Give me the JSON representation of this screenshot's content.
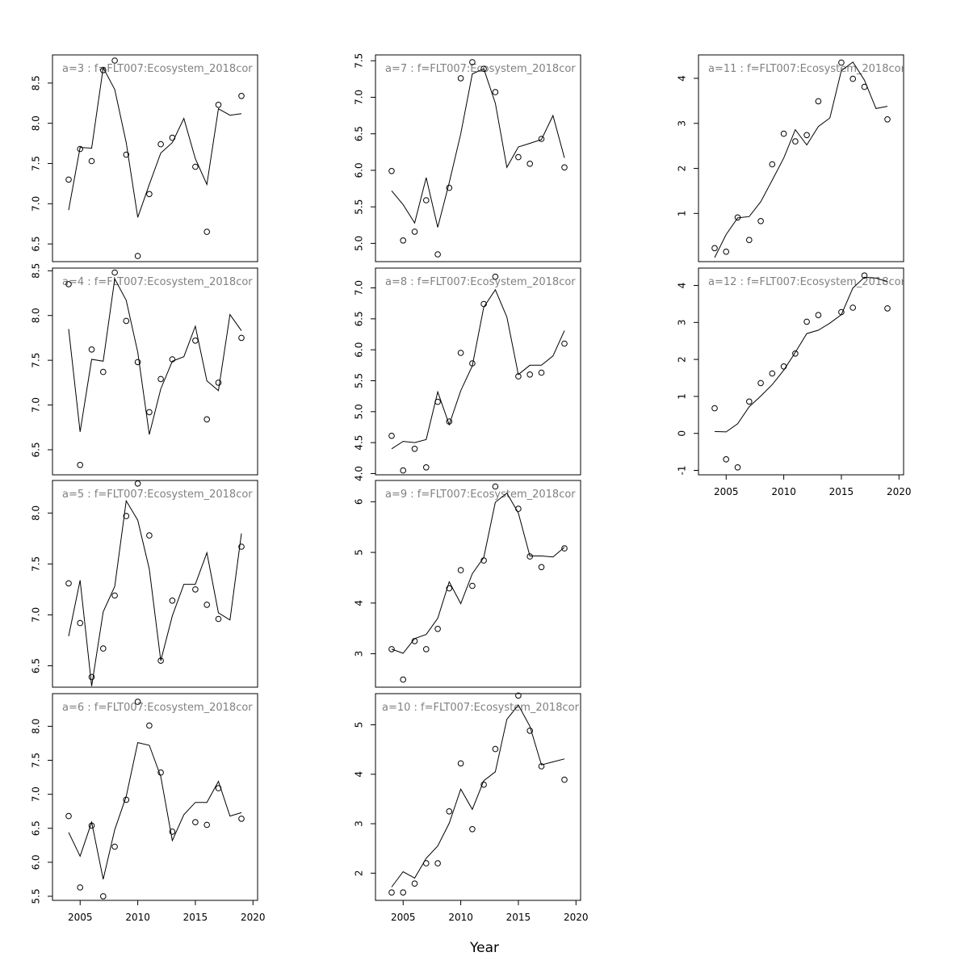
{
  "figure": {
    "xlabel": "Year"
  },
  "chart_data": [
    {
      "type": "scatter",
      "title": "a=3  :  f=FLT007:Ecosystem_2018cor",
      "xlim": [
        2002.6,
        2020.4
      ],
      "ylim": [
        6.28,
        8.85
      ],
      "y_ticks": [
        6.5,
        7.0,
        7.5,
        8.0,
        8.5
      ],
      "show_x_axis": false,
      "points": {
        "x": [
          2004,
          2005,
          2006,
          2007,
          2008,
          2009,
          2010,
          2011,
          2012,
          2013,
          2015,
          2016,
          2017,
          2019
        ],
        "y": [
          7.3,
          7.68,
          7.53,
          8.66,
          8.78,
          7.61,
          6.35,
          7.12,
          7.74,
          7.82,
          7.46,
          6.65,
          8.23,
          8.34
        ]
      },
      "line": {
        "x": [
          2004,
          2005,
          2006,
          2007,
          2008,
          2009,
          2010,
          2011,
          2012,
          2013,
          2014,
          2015,
          2016,
          2017,
          2018,
          2019
        ],
        "y": [
          6.92,
          7.7,
          7.69,
          8.69,
          8.42,
          7.76,
          6.83,
          7.24,
          7.63,
          7.76,
          8.06,
          7.56,
          7.24,
          8.18,
          8.1,
          8.12
        ]
      }
    },
    {
      "type": "scatter",
      "title": "a=4  :  f=FLT007:Ecosystem_2018cor",
      "xlim": [
        2002.6,
        2020.4
      ],
      "ylim": [
        6.22,
        8.53
      ],
      "y_ticks": [
        6.5,
        7.0,
        7.5,
        8.0,
        8.5
      ],
      "show_x_axis": false,
      "points": {
        "x": [
          2004,
          2005,
          2006,
          2007,
          2008,
          2009,
          2010,
          2011,
          2012,
          2013,
          2015,
          2016,
          2017,
          2019
        ],
        "y": [
          8.35,
          6.33,
          7.62,
          7.37,
          8.48,
          7.94,
          7.48,
          6.92,
          7.29,
          7.51,
          7.72,
          6.84,
          7.25,
          7.75
        ]
      },
      "line": {
        "x": [
          2004,
          2005,
          2006,
          2007,
          2008,
          2009,
          2010,
          2011,
          2012,
          2013,
          2014,
          2015,
          2016,
          2017,
          2018,
          2019
        ],
        "y": [
          7.85,
          6.7,
          7.51,
          7.49,
          8.41,
          8.17,
          7.59,
          6.67,
          7.18,
          7.49,
          7.54,
          7.88,
          7.27,
          7.16,
          8.01,
          7.83
        ]
      }
    },
    {
      "type": "scatter",
      "title": "a=5  :  f=FLT007:Ecosystem_2018cor",
      "xlim": [
        2002.6,
        2020.4
      ],
      "ylim": [
        6.29,
        8.32
      ],
      "y_ticks": [
        6.5,
        7.0,
        7.5,
        8.0
      ],
      "show_x_axis": false,
      "points": {
        "x": [
          2004,
          2005,
          2006,
          2007,
          2008,
          2009,
          2010,
          2011,
          2012,
          2013,
          2015,
          2016,
          2017,
          2019
        ],
        "y": [
          7.31,
          6.92,
          6.39,
          6.67,
          7.19,
          7.97,
          8.29,
          7.78,
          6.55,
          7.14,
          7.25,
          7.1,
          6.96,
          7.67
        ]
      },
      "line": {
        "x": [
          2004,
          2005,
          2006,
          2007,
          2008,
          2009,
          2010,
          2011,
          2012,
          2013,
          2014,
          2015,
          2016,
          2017,
          2018,
          2019
        ],
        "y": [
          6.79,
          7.34,
          6.3,
          7.03,
          7.28,
          8.12,
          7.93,
          7.45,
          6.55,
          6.99,
          7.3,
          7.3,
          7.61,
          7.02,
          6.95,
          7.8
        ]
      }
    },
    {
      "type": "scatter",
      "title": "a=6  :  f=FLT007:Ecosystem_2018cor",
      "xlim": [
        2002.6,
        2020.4
      ],
      "ylim": [
        5.44,
        8.48
      ],
      "y_ticks": [
        5.5,
        6.0,
        6.5,
        7.0,
        7.5,
        8.0
      ],
      "show_x_axis": true,
      "x_ticks": [
        2005,
        2010,
        2015,
        2020
      ],
      "points": {
        "x": [
          2004,
          2005,
          2006,
          2007,
          2008,
          2009,
          2010,
          2011,
          2012,
          2013,
          2015,
          2016,
          2017,
          2019
        ],
        "y": [
          6.68,
          5.63,
          6.54,
          5.5,
          6.23,
          6.92,
          8.36,
          8.01,
          7.32,
          6.45,
          6.59,
          6.55,
          7.09,
          6.64
        ]
      },
      "line": {
        "x": [
          2004,
          2005,
          2006,
          2007,
          2008,
          2009,
          2010,
          2011,
          2012,
          2013,
          2014,
          2015,
          2016,
          2017,
          2018,
          2019
        ],
        "y": [
          6.44,
          6.09,
          6.59,
          5.75,
          6.48,
          6.97,
          7.76,
          7.72,
          7.26,
          6.32,
          6.7,
          6.88,
          6.88,
          7.19,
          6.68,
          6.73
        ]
      }
    },
    {
      "type": "scatter",
      "title": "a=7  :  f=FLT007:Ecosystem_2018cor",
      "xlim": [
        2002.6,
        2020.4
      ],
      "ylim": [
        4.75,
        7.58
      ],
      "y_ticks": [
        5.0,
        5.5,
        6.0,
        6.5,
        7.0,
        7.5
      ],
      "show_x_axis": false,
      "points": {
        "x": [
          2004,
          2005,
          2006,
          2007,
          2008,
          2009,
          2010,
          2011,
          2012,
          2013,
          2015,
          2016,
          2017,
          2019
        ],
        "y": [
          5.99,
          5.04,
          5.16,
          5.59,
          4.85,
          5.76,
          7.26,
          7.48,
          7.39,
          7.07,
          6.18,
          6.09,
          6.43,
          6.04
        ]
      },
      "line": {
        "x": [
          2004,
          2005,
          2006,
          2007,
          2008,
          2009,
          2010,
          2011,
          2012,
          2013,
          2014,
          2015,
          2016,
          2017,
          2018,
          2019
        ],
        "y": [
          5.72,
          5.53,
          5.28,
          5.9,
          5.22,
          5.83,
          6.5,
          7.32,
          7.39,
          6.92,
          6.04,
          6.32,
          6.37,
          6.42,
          6.75,
          6.17
        ]
      }
    },
    {
      "type": "scatter",
      "title": "a=8  :  f=FLT007:Ecosystem_2018cor",
      "xlim": [
        2002.6,
        2020.4
      ],
      "ylim": [
        3.98,
        7.32
      ],
      "y_ticks": [
        4.0,
        4.5,
        5.0,
        5.5,
        6.0,
        6.5,
        7.0
      ],
      "show_x_axis": false,
      "points": {
        "x": [
          2004,
          2005,
          2006,
          2007,
          2008,
          2009,
          2010,
          2011,
          2012,
          2013,
          2015,
          2016,
          2017,
          2019
        ],
        "y": [
          4.61,
          4.05,
          4.4,
          4.1,
          5.16,
          4.84,
          5.95,
          5.78,
          6.74,
          7.18,
          5.57,
          5.6,
          5.63,
          6.1
        ]
      },
      "line": {
        "x": [
          2004,
          2005,
          2006,
          2007,
          2008,
          2009,
          2010,
          2011,
          2012,
          2013,
          2014,
          2015,
          2016,
          2017,
          2018,
          2019
        ],
        "y": [
          4.4,
          4.52,
          4.5,
          4.55,
          5.32,
          4.79,
          5.34,
          5.74,
          6.69,
          6.97,
          6.53,
          5.6,
          5.75,
          5.75,
          5.9,
          6.31
        ]
      }
    },
    {
      "type": "scatter",
      "title": "a=9  :  f=FLT007:Ecosystem_2018cor",
      "xlim": [
        2002.6,
        2020.4
      ],
      "ylim": [
        2.34,
        6.42
      ],
      "y_ticks": [
        3,
        4,
        5,
        6
      ],
      "show_x_axis": false,
      "points": {
        "x": [
          2004,
          2005,
          2006,
          2007,
          2008,
          2009,
          2010,
          2011,
          2012,
          2013,
          2015,
          2016,
          2017,
          2019
        ],
        "y": [
          3.09,
          2.49,
          3.25,
          3.09,
          3.49,
          4.29,
          4.65,
          4.34,
          4.84,
          6.3,
          5.86,
          4.92,
          4.71,
          5.08
        ]
      },
      "line": {
        "x": [
          2004,
          2005,
          2006,
          2007,
          2008,
          2009,
          2010,
          2011,
          2012,
          2013,
          2014,
          2015,
          2016,
          2017,
          2018,
          2019
        ],
        "y": [
          3.09,
          3.01,
          3.3,
          3.38,
          3.7,
          4.42,
          3.99,
          4.58,
          4.9,
          5.99,
          6.17,
          5.78,
          4.93,
          4.93,
          4.91,
          5.1
        ]
      }
    },
    {
      "type": "scatter",
      "title": "a=10  :  f=FLT007:Ecosystem_2018cor",
      "xlim": [
        2002.6,
        2020.4
      ],
      "ylim": [
        1.45,
        5.63
      ],
      "y_ticks": [
        2,
        3,
        4,
        5
      ],
      "show_x_axis": true,
      "x_ticks": [
        2005,
        2010,
        2015,
        2020
      ],
      "points": {
        "x": [
          2004,
          2005,
          2006,
          2007,
          2008,
          2009,
          2010,
          2011,
          2012,
          2013,
          2015,
          2016,
          2017,
          2019
        ],
        "y": [
          1.61,
          1.61,
          1.79,
          2.2,
          2.2,
          3.25,
          4.22,
          2.89,
          3.79,
          4.51,
          5.59,
          4.88,
          4.16,
          3.89
        ]
      },
      "line": {
        "x": [
          2004,
          2005,
          2006,
          2007,
          2008,
          2009,
          2010,
          2011,
          2012,
          2013,
          2014,
          2015,
          2016,
          2017,
          2018,
          2019
        ],
        "y": [
          1.72,
          2.03,
          1.9,
          2.3,
          2.55,
          3.01,
          3.7,
          3.29,
          3.87,
          4.05,
          5.11,
          5.4,
          4.97,
          4.19,
          4.25,
          4.31
        ]
      }
    },
    {
      "type": "scatter",
      "title": "a=11  :  f=FLT007:Ecosystem_2018cor",
      "xlim": [
        2002.6,
        2020.4
      ],
      "ylim": [
        -0.07,
        4.52
      ],
      "y_ticks": [
        1,
        2,
        3,
        4
      ],
      "show_x_axis": false,
      "points": {
        "x": [
          2004,
          2005,
          2006,
          2007,
          2008,
          2009,
          2010,
          2011,
          2012,
          2013,
          2015,
          2016,
          2017,
          2019
        ],
        "y": [
          0.23,
          0.15,
          0.91,
          0.41,
          0.83,
          2.09,
          2.77,
          2.6,
          2.74,
          3.49,
          4.35,
          3.99,
          3.81,
          3.09
        ]
      },
      "line": {
        "x": [
          2004,
          2005,
          2006,
          2007,
          2008,
          2009,
          2010,
          2011,
          2012,
          2013,
          2014,
          2015,
          2016,
          2017,
          2018,
          2019
        ],
        "y": [
          0.02,
          0.53,
          0.9,
          0.93,
          1.26,
          1.74,
          2.23,
          2.86,
          2.52,
          2.93,
          3.12,
          4.17,
          4.36,
          3.96,
          3.33,
          3.38
        ]
      }
    },
    {
      "type": "scatter",
      "title": "a=12  :  f=FLT007:Ecosystem_2018cor",
      "xlim": [
        2002.6,
        2020.4
      ],
      "ylim": [
        -1.12,
        4.47
      ],
      "y_ticks": [
        -1,
        0,
        1,
        2,
        3,
        4
      ],
      "show_x_axis": true,
      "x_ticks": [
        2005,
        2010,
        2015,
        2020
      ],
      "points": {
        "x": [
          2004,
          2005,
          2006,
          2007,
          2008,
          2009,
          2010,
          2011,
          2012,
          2013,
          2015,
          2016,
          2017,
          2019
        ],
        "y": [
          0.68,
          -0.7,
          -0.92,
          0.86,
          1.36,
          1.62,
          1.81,
          2.16,
          3.02,
          3.2,
          3.28,
          3.4,
          4.27,
          3.38
        ]
      },
      "line": {
        "x": [
          2004,
          2005,
          2006,
          2007,
          2008,
          2009,
          2010,
          2011,
          2012,
          2013,
          2014,
          2015,
          2016,
          2017,
          2018,
          2019
        ],
        "y": [
          0.05,
          0.04,
          0.26,
          0.72,
          1.01,
          1.32,
          1.71,
          2.19,
          2.7,
          2.79,
          2.98,
          3.21,
          3.93,
          4.22,
          4.2,
          4.1
        ]
      }
    }
  ]
}
